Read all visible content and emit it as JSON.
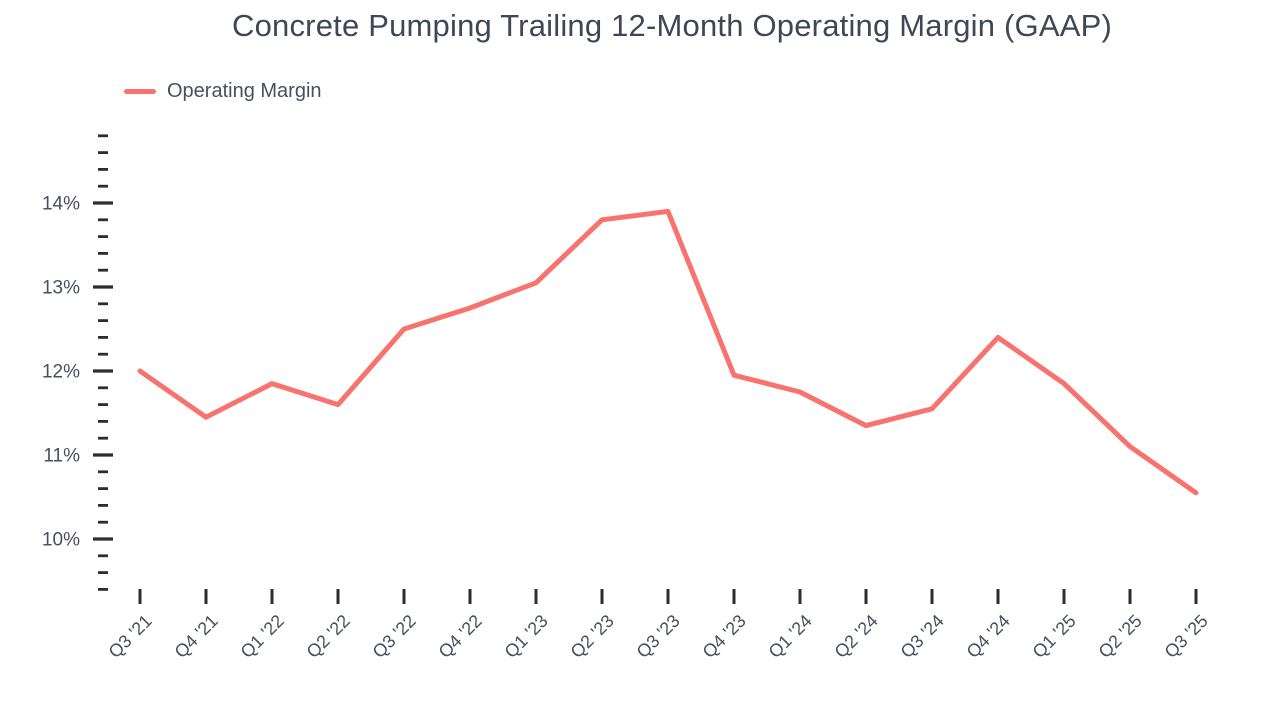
{
  "page": {
    "background": "#ffffff"
  },
  "colors": {
    "line": "#f8736e",
    "title": "#3e4755",
    "axis_label": "#46505f",
    "tick": "#2d2d2d",
    "background": "#ffffff"
  },
  "legend": {
    "label": "Operating Margin"
  },
  "chart_data": {
    "type": "line",
    "title": "Concrete Pumping Trailing 12-Month Operating Margin (GAAP)",
    "categories": [
      "Q3 '21",
      "Q4 '21",
      "Q1 '22",
      "Q2 '22",
      "Q3 '22",
      "Q4 '22",
      "Q1 '23",
      "Q2 '23",
      "Q3 '23",
      "Q4 '23",
      "Q1 '24",
      "Q2 '24",
      "Q3 '24",
      "Q4 '24",
      "Q1 '25",
      "Q2 '25",
      "Q3 '25"
    ],
    "series": [
      {
        "name": "Operating Margin",
        "color": "#f8736e",
        "values": [
          12.0,
          11.45,
          11.85,
          11.6,
          12.5,
          12.75,
          13.05,
          13.8,
          13.9,
          11.95,
          11.75,
          11.35,
          11.55,
          12.4,
          11.85,
          11.1,
          10.55
        ]
      }
    ],
    "xlabel": "",
    "ylabel": "",
    "y_axis": {
      "min": 9.4,
      "max": 14.8,
      "minor_step": 0.2,
      "major_step": 1.0,
      "major_labels": [
        "10%",
        "11%",
        "12%",
        "13%",
        "14%"
      ],
      "label_format": "percent"
    },
    "x_axis": {
      "label_rotation": -45
    },
    "legend_position": "top-left",
    "grid": false
  }
}
